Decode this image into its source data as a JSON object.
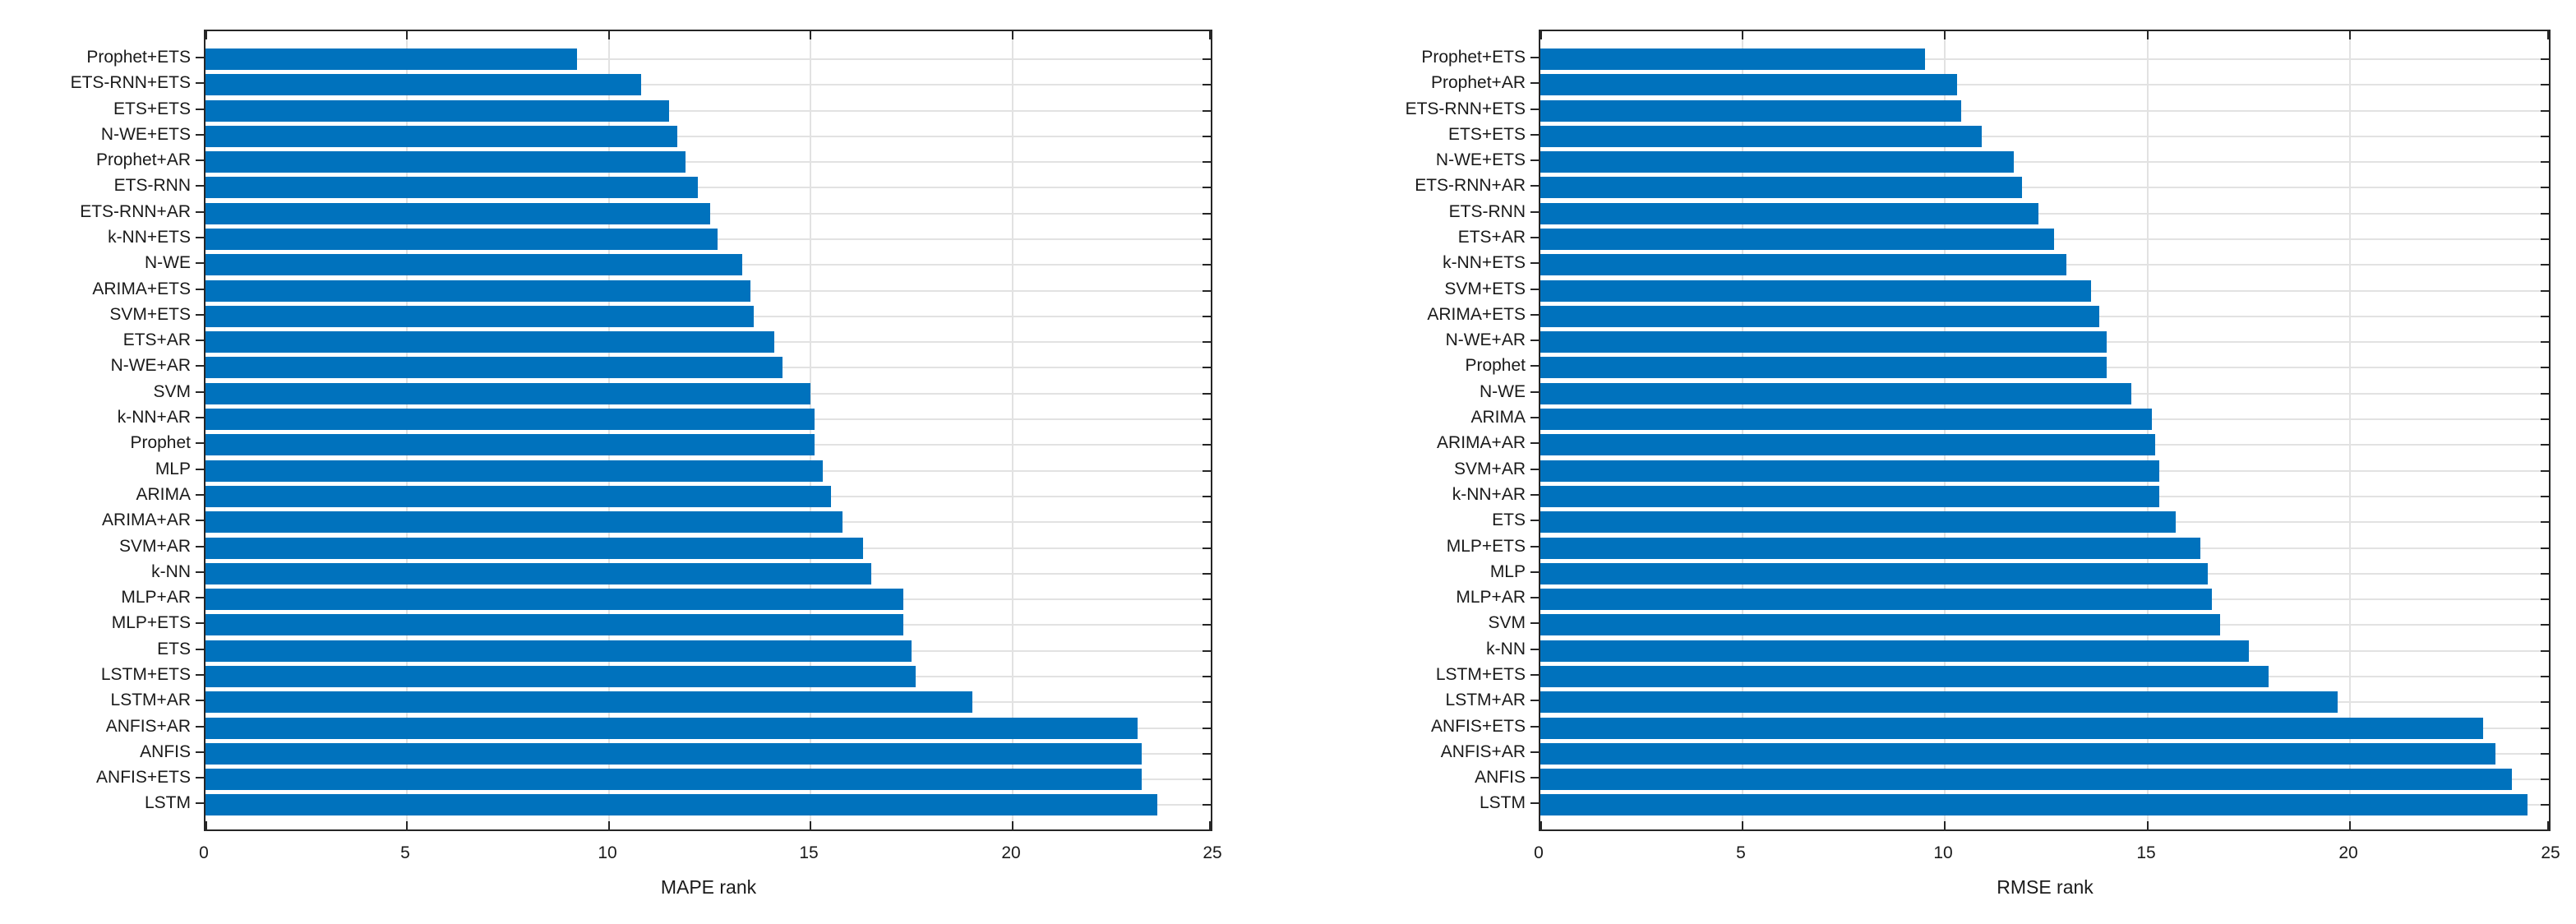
{
  "accent_color": "#0072BD",
  "grid_color": "#e2e2e2",
  "axis_color": "#262626",
  "chart_data": [
    {
      "type": "bar",
      "orientation": "horizontal",
      "xlabel": "MAPE rank",
      "xlim": [
        0,
        25
      ],
      "xticks": [
        0,
        5,
        10,
        15,
        20,
        25
      ],
      "grid": true,
      "bar_color": "#0072BD",
      "categories": [
        "Prophet+ETS",
        "ETS-RNN+ETS",
        "ETS+ETS",
        "N-WE+ETS",
        "Prophet+AR",
        "ETS-RNN",
        "ETS-RNN+AR",
        "k-NN+ETS",
        "N-WE",
        "ARIMA+ETS",
        "SVM+ETS",
        "ETS+AR",
        "N-WE+AR",
        "SVM",
        "k-NN+AR",
        "Prophet",
        "MLP",
        "ARIMA",
        "ARIMA+AR",
        "SVM+AR",
        "k-NN",
        "MLP+AR",
        "MLP+ETS",
        "ETS",
        "LSTM+ETS",
        "LSTM+AR",
        "ANFIS+AR",
        "ANFIS",
        "ANFIS+ETS",
        "LSTM"
      ],
      "values": [
        9.2,
        10.8,
        11.5,
        11.7,
        11.9,
        12.2,
        12.5,
        12.7,
        13.3,
        13.5,
        13.6,
        14.1,
        14.3,
        15.0,
        15.1,
        15.1,
        15.3,
        15.5,
        15.8,
        16.3,
        16.5,
        17.3,
        17.3,
        17.5,
        17.6,
        19.0,
        23.1,
        23.2,
        23.2,
        23.6
      ]
    },
    {
      "type": "bar",
      "orientation": "horizontal",
      "xlabel": "RMSE rank",
      "xlim": [
        0,
        25
      ],
      "xticks": [
        0,
        5,
        10,
        15,
        20,
        25
      ],
      "grid": true,
      "bar_color": "#0072BD",
      "categories": [
        "Prophet+ETS",
        "Prophet+AR",
        "ETS-RNN+ETS",
        "ETS+ETS",
        "N-WE+ETS",
        "ETS-RNN+AR",
        "ETS-RNN",
        "ETS+AR",
        "k-NN+ETS",
        "SVM+ETS",
        "ARIMA+ETS",
        "N-WE+AR",
        "Prophet",
        "N-WE",
        "ARIMA",
        "ARIMA+AR",
        "SVM+AR",
        "k-NN+AR",
        "ETS",
        "MLP+ETS",
        "MLP",
        "MLP+AR",
        "SVM",
        "k-NN",
        "LSTM+ETS",
        "LSTM+AR",
        "ANFIS+ETS",
        "ANFIS+AR",
        "ANFIS",
        "LSTM"
      ],
      "values": [
        9.5,
        10.3,
        10.4,
        10.9,
        11.7,
        11.9,
        12.3,
        12.7,
        13.0,
        13.6,
        13.8,
        14.0,
        14.0,
        14.6,
        15.1,
        15.2,
        15.3,
        15.3,
        15.7,
        16.3,
        16.5,
        16.6,
        16.8,
        17.5,
        18.0,
        19.7,
        23.3,
        23.6,
        24.0,
        24.4
      ]
    }
  ]
}
